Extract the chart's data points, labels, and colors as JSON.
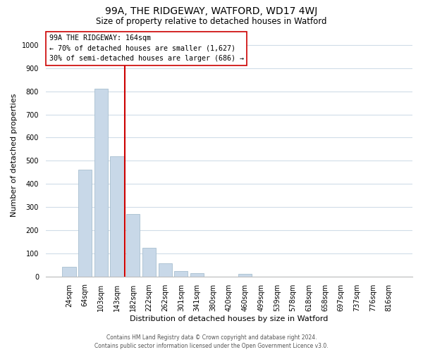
{
  "title": "99A, THE RIDGEWAY, WATFORD, WD17 4WJ",
  "subtitle": "Size of property relative to detached houses in Watford",
  "xlabel": "Distribution of detached houses by size in Watford",
  "ylabel": "Number of detached properties",
  "bar_labels": [
    "24sqm",
    "64sqm",
    "103sqm",
    "143sqm",
    "182sqm",
    "222sqm",
    "262sqm",
    "301sqm",
    "341sqm",
    "380sqm",
    "420sqm",
    "460sqm",
    "499sqm",
    "539sqm",
    "578sqm",
    "618sqm",
    "658sqm",
    "697sqm",
    "737sqm",
    "776sqm",
    "816sqm"
  ],
  "bar_values": [
    43,
    460,
    810,
    520,
    270,
    125,
    57,
    23,
    13,
    0,
    0,
    10,
    0,
    0,
    0,
    0,
    0,
    0,
    0,
    0,
    0
  ],
  "bar_color": "#c8d8e8",
  "bar_edge_color": "#a8bfd0",
  "vline_x": 3.5,
  "vline_color": "#cc0000",
  "annotation_title": "99A THE RIDGEWAY: 164sqm",
  "annotation_line1": "← 70% of detached houses are smaller (1,627)",
  "annotation_line2": "30% of semi-detached houses are larger (686) →",
  "annotation_box_color": "#ffffff",
  "annotation_box_edge": "#cc0000",
  "ylim": [
    0,
    1050
  ],
  "yticks": [
    0,
    100,
    200,
    300,
    400,
    500,
    600,
    700,
    800,
    900,
    1000
  ],
  "footer_line1": "Contains HM Land Registry data © Crown copyright and database right 2024.",
  "footer_line2": "Contains public sector information licensed under the Open Government Licence v3.0.",
  "bg_color": "#ffffff",
  "grid_color": "#d0dce8",
  "title_fontsize": 10,
  "subtitle_fontsize": 8.5,
  "xlabel_fontsize": 8,
  "ylabel_fontsize": 8,
  "tick_fontsize": 7,
  "footer_fontsize": 5.5
}
